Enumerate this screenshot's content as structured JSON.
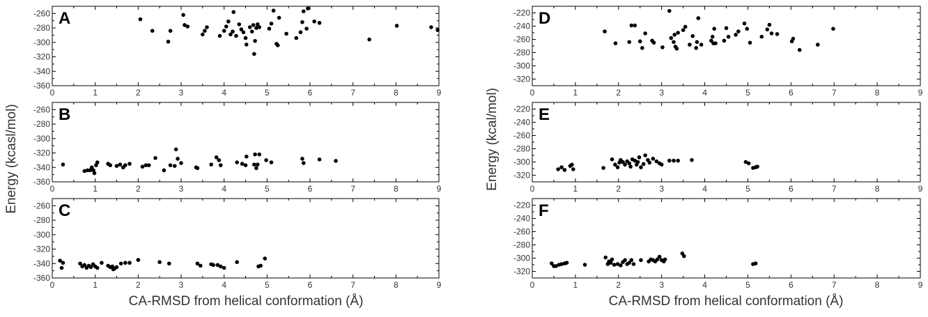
{
  "figure": {
    "left_xlabel": "CA-RMSD from helical conformation (Å)",
    "left_ylabel": "Energy (kcasl/mol)",
    "right_xlabel": "CA-RMSD from helical conformation (Å)",
    "right_ylabel": "Energy (kcal/mol)",
    "marker_color": "#000000"
  },
  "chart_data": [
    {
      "type": "scatter",
      "panel": "A",
      "xlim": [
        0,
        9
      ],
      "ylim": [
        -360,
        -250
      ],
      "xticks": [
        0,
        1,
        2,
        3,
        4,
        5,
        6,
        7,
        8,
        9
      ],
      "yticks": [
        -260,
        -280,
        -300,
        -320,
        -340,
        -360
      ],
      "grid": false,
      "points": [
        [
          2.05,
          -268
        ],
        [
          2.33,
          -284
        ],
        [
          2.7,
          -299
        ],
        [
          2.75,
          -284
        ],
        [
          3.05,
          -262
        ],
        [
          3.08,
          -276
        ],
        [
          3.15,
          -278
        ],
        [
          3.5,
          -289
        ],
        [
          3.55,
          -284
        ],
        [
          3.6,
          -279
        ],
        [
          3.9,
          -291
        ],
        [
          4.0,
          -284
        ],
        [
          4.05,
          -278
        ],
        [
          4.1,
          -271
        ],
        [
          4.15,
          -289
        ],
        [
          4.2,
          -285
        ],
        [
          4.22,
          -258
        ],
        [
          4.28,
          -291
        ],
        [
          4.35,
          -275
        ],
        [
          4.4,
          -282
        ],
        [
          4.45,
          -286
        ],
        [
          4.5,
          -294
        ],
        [
          4.52,
          -303
        ],
        [
          4.6,
          -279
        ],
        [
          4.65,
          -285
        ],
        [
          4.68,
          -276
        ],
        [
          4.7,
          -316
        ],
        [
          4.72,
          -298
        ],
        [
          4.75,
          -280
        ],
        [
          4.78,
          -275
        ],
        [
          4.82,
          -279
        ],
        [
          5.05,
          -281
        ],
        [
          5.1,
          -274
        ],
        [
          5.15,
          -256
        ],
        [
          5.22,
          -302
        ],
        [
          5.25,
          -304
        ],
        [
          5.28,
          -266
        ],
        [
          5.45,
          -288
        ],
        [
          5.68,
          -294
        ],
        [
          5.78,
          -286
        ],
        [
          5.82,
          -272
        ],
        [
          5.85,
          -257
        ],
        [
          5.92,
          -281
        ],
        [
          5.95,
          -253
        ],
        [
          6.1,
          -271
        ],
        [
          6.22,
          -273
        ],
        [
          7.38,
          -296
        ],
        [
          8.02,
          -277
        ],
        [
          8.82,
          -279
        ],
        [
          8.97,
          -283
        ]
      ]
    },
    {
      "type": "scatter",
      "panel": "B",
      "xlim": [
        0,
        9
      ],
      "ylim": [
        -360,
        -250
      ],
      "xticks": [
        0,
        1,
        2,
        3,
        4,
        5,
        6,
        7,
        8,
        9
      ],
      "yticks": [
        -260,
        -280,
        -300,
        -320,
        -340,
        -360
      ],
      "grid": false,
      "points": [
        [
          0.25,
          -336
        ],
        [
          0.75,
          -345
        ],
        [
          0.82,
          -344
        ],
        [
          0.88,
          -344
        ],
        [
          0.92,
          -340
        ],
        [
          0.96,
          -344
        ],
        [
          0.98,
          -348
        ],
        [
          1.02,
          -337
        ],
        [
          1.05,
          -333
        ],
        [
          1.3,
          -335
        ],
        [
          1.35,
          -337
        ],
        [
          1.5,
          -338
        ],
        [
          1.58,
          -336
        ],
        [
          1.65,
          -340
        ],
        [
          1.7,
          -337
        ],
        [
          1.8,
          -335
        ],
        [
          2.1,
          -339
        ],
        [
          2.18,
          -337
        ],
        [
          2.25,
          -337
        ],
        [
          2.4,
          -327
        ],
        [
          2.6,
          -344
        ],
        [
          2.75,
          -337
        ],
        [
          2.85,
          -338
        ],
        [
          2.88,
          -315
        ],
        [
          2.92,
          -328
        ],
        [
          3.0,
          -334
        ],
        [
          3.35,
          -340
        ],
        [
          3.38,
          -341
        ],
        [
          3.7,
          -336
        ],
        [
          3.82,
          -326
        ],
        [
          3.88,
          -330
        ],
        [
          3.92,
          -337
        ],
        [
          4.3,
          -333
        ],
        [
          4.42,
          -335
        ],
        [
          4.5,
          -337
        ],
        [
          4.52,
          -325
        ],
        [
          4.7,
          -336
        ],
        [
          4.72,
          -322
        ],
        [
          4.75,
          -341
        ],
        [
          4.78,
          -336
        ],
        [
          4.82,
          -322
        ],
        [
          4.98,
          -330
        ],
        [
          5.1,
          -333
        ],
        [
          5.82,
          -328
        ],
        [
          5.85,
          -334
        ],
        [
          6.22,
          -329
        ],
        [
          6.6,
          -331
        ]
      ]
    },
    {
      "type": "scatter",
      "panel": "C",
      "xlim": [
        0,
        9
      ],
      "ylim": [
        -360,
        -250
      ],
      "xticks": [
        0,
        1,
        2,
        3,
        4,
        5,
        6,
        7,
        8,
        9
      ],
      "yticks": [
        -260,
        -280,
        -300,
        -320,
        -340,
        -360
      ],
      "grid": false,
      "points": [
        [
          0.18,
          -336
        ],
        [
          0.22,
          -346
        ],
        [
          0.25,
          -339
        ],
        [
          0.65,
          -340
        ],
        [
          0.7,
          -344
        ],
        [
          0.75,
          -342
        ],
        [
          0.8,
          -346
        ],
        [
          0.85,
          -343
        ],
        [
          0.9,
          -345
        ],
        [
          0.95,
          -341
        ],
        [
          1.0,
          -344
        ],
        [
          1.05,
          -346
        ],
        [
          1.15,
          -339
        ],
        [
          1.3,
          -343
        ],
        [
          1.35,
          -345
        ],
        [
          1.4,
          -344
        ],
        [
          1.42,
          -348
        ],
        [
          1.45,
          -347
        ],
        [
          1.5,
          -345
        ],
        [
          1.6,
          -340
        ],
        [
          1.7,
          -339
        ],
        [
          1.8,
          -339
        ],
        [
          2.0,
          -335
        ],
        [
          2.5,
          -338
        ],
        [
          2.72,
          -340
        ],
        [
          3.38,
          -340
        ],
        [
          3.45,
          -343
        ],
        [
          3.7,
          -341
        ],
        [
          3.75,
          -342
        ],
        [
          3.85,
          -342
        ],
        [
          3.92,
          -344
        ],
        [
          4.0,
          -346
        ],
        [
          4.3,
          -338
        ],
        [
          4.8,
          -344
        ],
        [
          4.85,
          -343
        ],
        [
          4.95,
          -333
        ]
      ]
    },
    {
      "type": "scatter",
      "panel": "D",
      "xlim": [
        0,
        9
      ],
      "ylim": [
        -330,
        -210
      ],
      "xticks": [
        0,
        1,
        2,
        3,
        4,
        5,
        6,
        7,
        8,
        9
      ],
      "yticks": [
        -220,
        -240,
        -260,
        -280,
        -300,
        -320
      ],
      "grid": false,
      "points": [
        [
          1.68,
          -248
        ],
        [
          1.93,
          -266
        ],
        [
          2.25,
          -264
        ],
        [
          2.3,
          -239
        ],
        [
          2.38,
          -239
        ],
        [
          2.5,
          -263
        ],
        [
          2.55,
          -273
        ],
        [
          2.62,
          -251
        ],
        [
          2.78,
          -262
        ],
        [
          2.82,
          -265
        ],
        [
          3.02,
          -272
        ],
        [
          3.18,
          -217
        ],
        [
          3.22,
          -258
        ],
        [
          3.28,
          -264
        ],
        [
          3.3,
          -253
        ],
        [
          3.32,
          -271
        ],
        [
          3.35,
          -274
        ],
        [
          3.38,
          -250
        ],
        [
          3.5,
          -246
        ],
        [
          3.55,
          -241
        ],
        [
          3.65,
          -268
        ],
        [
          3.72,
          -255
        ],
        [
          3.8,
          -273
        ],
        [
          3.82,
          -264
        ],
        [
          3.85,
          -228
        ],
        [
          3.92,
          -268
        ],
        [
          4.15,
          -262
        ],
        [
          4.18,
          -256
        ],
        [
          4.2,
          -266
        ],
        [
          4.22,
          -244
        ],
        [
          4.25,
          -266
        ],
        [
          4.45,
          -262
        ],
        [
          4.5,
          -243
        ],
        [
          4.55,
          -256
        ],
        [
          4.72,
          -253
        ],
        [
          4.78,
          -248
        ],
        [
          4.92,
          -236
        ],
        [
          4.98,
          -244
        ],
        [
          5.05,
          -265
        ],
        [
          5.32,
          -256
        ],
        [
          5.45,
          -245
        ],
        [
          5.5,
          -238
        ],
        [
          5.55,
          -251
        ],
        [
          5.68,
          -252
        ],
        [
          6.02,
          -263
        ],
        [
          6.05,
          -259
        ],
        [
          6.2,
          -276
        ],
        [
          6.62,
          -268
        ],
        [
          6.98,
          -244
        ]
      ]
    },
    {
      "type": "scatter",
      "panel": "E",
      "xlim": [
        0,
        9
      ],
      "ylim": [
        -330,
        -210
      ],
      "xticks": [
        0,
        1,
        2,
        3,
        4,
        5,
        6,
        7,
        8,
        9
      ],
      "yticks": [
        -220,
        -240,
        -260,
        -280,
        -300,
        -320
      ],
      "grid": false,
      "points": [
        [
          0.6,
          -311
        ],
        [
          0.68,
          -308
        ],
        [
          0.75,
          -312
        ],
        [
          0.88,
          -306
        ],
        [
          0.92,
          -304
        ],
        [
          0.95,
          -311
        ],
        [
          1.65,
          -309
        ],
        [
          1.85,
          -296
        ],
        [
          1.92,
          -304
        ],
        [
          1.98,
          -308
        ],
        [
          2.02,
          -301
        ],
        [
          2.05,
          -297
        ],
        [
          2.1,
          -300
        ],
        [
          2.15,
          -304
        ],
        [
          2.2,
          -299
        ],
        [
          2.25,
          -302
        ],
        [
          2.28,
          -307
        ],
        [
          2.32,
          -296
        ],
        [
          2.38,
          -298
        ],
        [
          2.42,
          -304
        ],
        [
          2.45,
          -300
        ],
        [
          2.48,
          -293
        ],
        [
          2.52,
          -308
        ],
        [
          2.58,
          -303
        ],
        [
          2.62,
          -290
        ],
        [
          2.68,
          -297
        ],
        [
          2.72,
          -301
        ],
        [
          2.8,
          -295
        ],
        [
          2.88,
          -299
        ],
        [
          2.95,
          -302
        ],
        [
          3.0,
          -304
        ],
        [
          3.18,
          -298
        ],
        [
          3.28,
          -298
        ],
        [
          3.38,
          -298
        ],
        [
          3.7,
          -297
        ],
        [
          4.95,
          -300
        ],
        [
          5.02,
          -302
        ],
        [
          5.12,
          -309
        ],
        [
          5.18,
          -308
        ],
        [
          5.22,
          -307
        ]
      ]
    },
    {
      "type": "scatter",
      "panel": "F",
      "xlim": [
        0,
        9
      ],
      "ylim": [
        -330,
        -210
      ],
      "xticks": [
        0,
        1,
        2,
        3,
        4,
        5,
        6,
        7,
        8,
        9
      ],
      "yticks": [
        -220,
        -240,
        -260,
        -280,
        -300,
        -320
      ],
      "grid": false,
      "points": [
        [
          0.45,
          -308
        ],
        [
          0.5,
          -312
        ],
        [
          0.55,
          -312
        ],
        [
          0.62,
          -310
        ],
        [
          0.68,
          -309
        ],
        [
          0.75,
          -308
        ],
        [
          0.8,
          -307
        ],
        [
          1.22,
          -310
        ],
        [
          1.7,
          -299
        ],
        [
          1.75,
          -309
        ],
        [
          1.78,
          -305
        ],
        [
          1.82,
          -307
        ],
        [
          1.85,
          -302
        ],
        [
          1.9,
          -310
        ],
        [
          1.98,
          -309
        ],
        [
          2.05,
          -311
        ],
        [
          2.1,
          -306
        ],
        [
          2.15,
          -303
        ],
        [
          2.2,
          -309
        ],
        [
          2.25,
          -307
        ],
        [
          2.3,
          -303
        ],
        [
          2.35,
          -309
        ],
        [
          2.52,
          -303
        ],
        [
          2.7,
          -305
        ],
        [
          2.75,
          -302
        ],
        [
          2.8,
          -303
        ],
        [
          2.85,
          -305
        ],
        [
          2.9,
          -302
        ],
        [
          2.95,
          -298
        ],
        [
          3.0,
          -303
        ],
        [
          3.05,
          -305
        ],
        [
          3.08,
          -302
        ],
        [
          3.48,
          -293
        ],
        [
          3.52,
          -297
        ],
        [
          5.12,
          -309
        ],
        [
          5.18,
          -308
        ]
      ]
    }
  ]
}
